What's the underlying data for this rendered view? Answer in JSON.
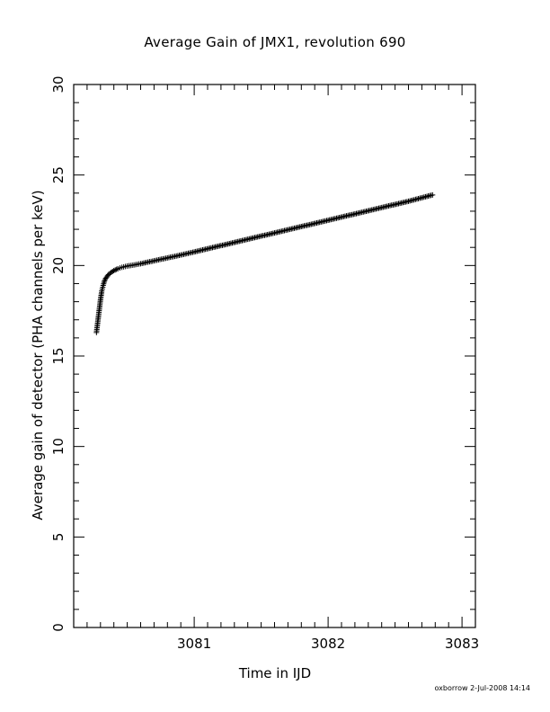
{
  "chart_data": {
    "type": "scatter",
    "title": "Average Gain of JMX1, revolution 690",
    "xlabel": "Time in IJD",
    "ylabel": "Average gain of detector (PHA channels per keV)",
    "xlim": [
      3080.1,
      3083.1
    ],
    "ylim": [
      0,
      30
    ],
    "xticks": [
      3081,
      3082,
      3083
    ],
    "yticks": [
      0,
      5,
      10,
      15,
      20,
      25,
      30
    ],
    "marker": "plus",
    "grid": false,
    "series": [
      {
        "x": [
          3080.27,
          3080.28,
          3080.29,
          3080.3,
          3080.31,
          3080.32,
          3080.33,
          3080.34,
          3080.36,
          3080.38,
          3080.4,
          3080.43,
          3080.46,
          3080.5,
          3080.55,
          3080.6,
          3080.7,
          3080.8,
          3080.9,
          3081.0,
          3081.2,
          3081.4,
          3081.6,
          3081.8,
          3082.0,
          3082.2,
          3082.4,
          3082.6,
          3082.78
        ],
        "y": [
          16.3,
          16.9,
          17.5,
          18.1,
          18.6,
          18.9,
          19.15,
          19.3,
          19.5,
          19.62,
          19.72,
          19.82,
          19.9,
          19.97,
          20.03,
          20.1,
          20.26,
          20.42,
          20.58,
          20.75,
          21.1,
          21.45,
          21.8,
          22.15,
          22.5,
          22.85,
          23.2,
          23.55,
          23.9
        ]
      }
    ]
  },
  "footer": {
    "note": "oxborrow  2-Jul-2008 14:14"
  }
}
